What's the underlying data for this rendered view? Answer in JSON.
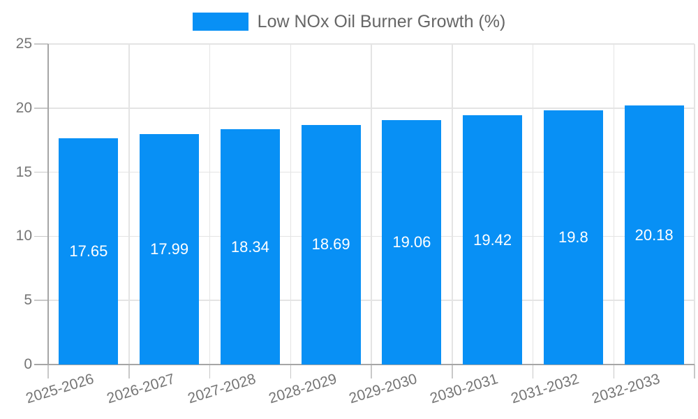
{
  "chart_data": {
    "type": "bar",
    "title": "",
    "legend_label": "Low NOx Oil Burner Growth (%)",
    "legend_position": "top-center",
    "categories": [
      "2025-2026",
      "2026-2027",
      "2027-2028",
      "2028-2029",
      "2029-2030",
      "2030-2031",
      "2031-2032",
      "2032-2033"
    ],
    "series": [
      {
        "name": "Low NOx Oil Burner Growth (%)",
        "values": [
          17.65,
          17.99,
          18.34,
          18.69,
          19.06,
          19.42,
          19.8,
          20.18
        ]
      }
    ],
    "value_labels": [
      "17.65",
      "17.99",
      "18.34",
      "18.69",
      "19.06",
      "19.42",
      "19.8",
      "20.18"
    ],
    "xlabel": "",
    "ylabel": "",
    "ylim": [
      0,
      25
    ],
    "yticks": [
      0,
      5,
      10,
      15,
      20,
      25
    ],
    "grid": true,
    "bar_color": "#0890F5",
    "grid_color": "#e4e4e4",
    "axis_color": "#a6a6a6",
    "tick_color": "#c8c8c8",
    "tick_label_color": "#757575",
    "legend_text_color": "#666666",
    "value_label_color": "#ffffff",
    "background": "#ffffff"
  }
}
